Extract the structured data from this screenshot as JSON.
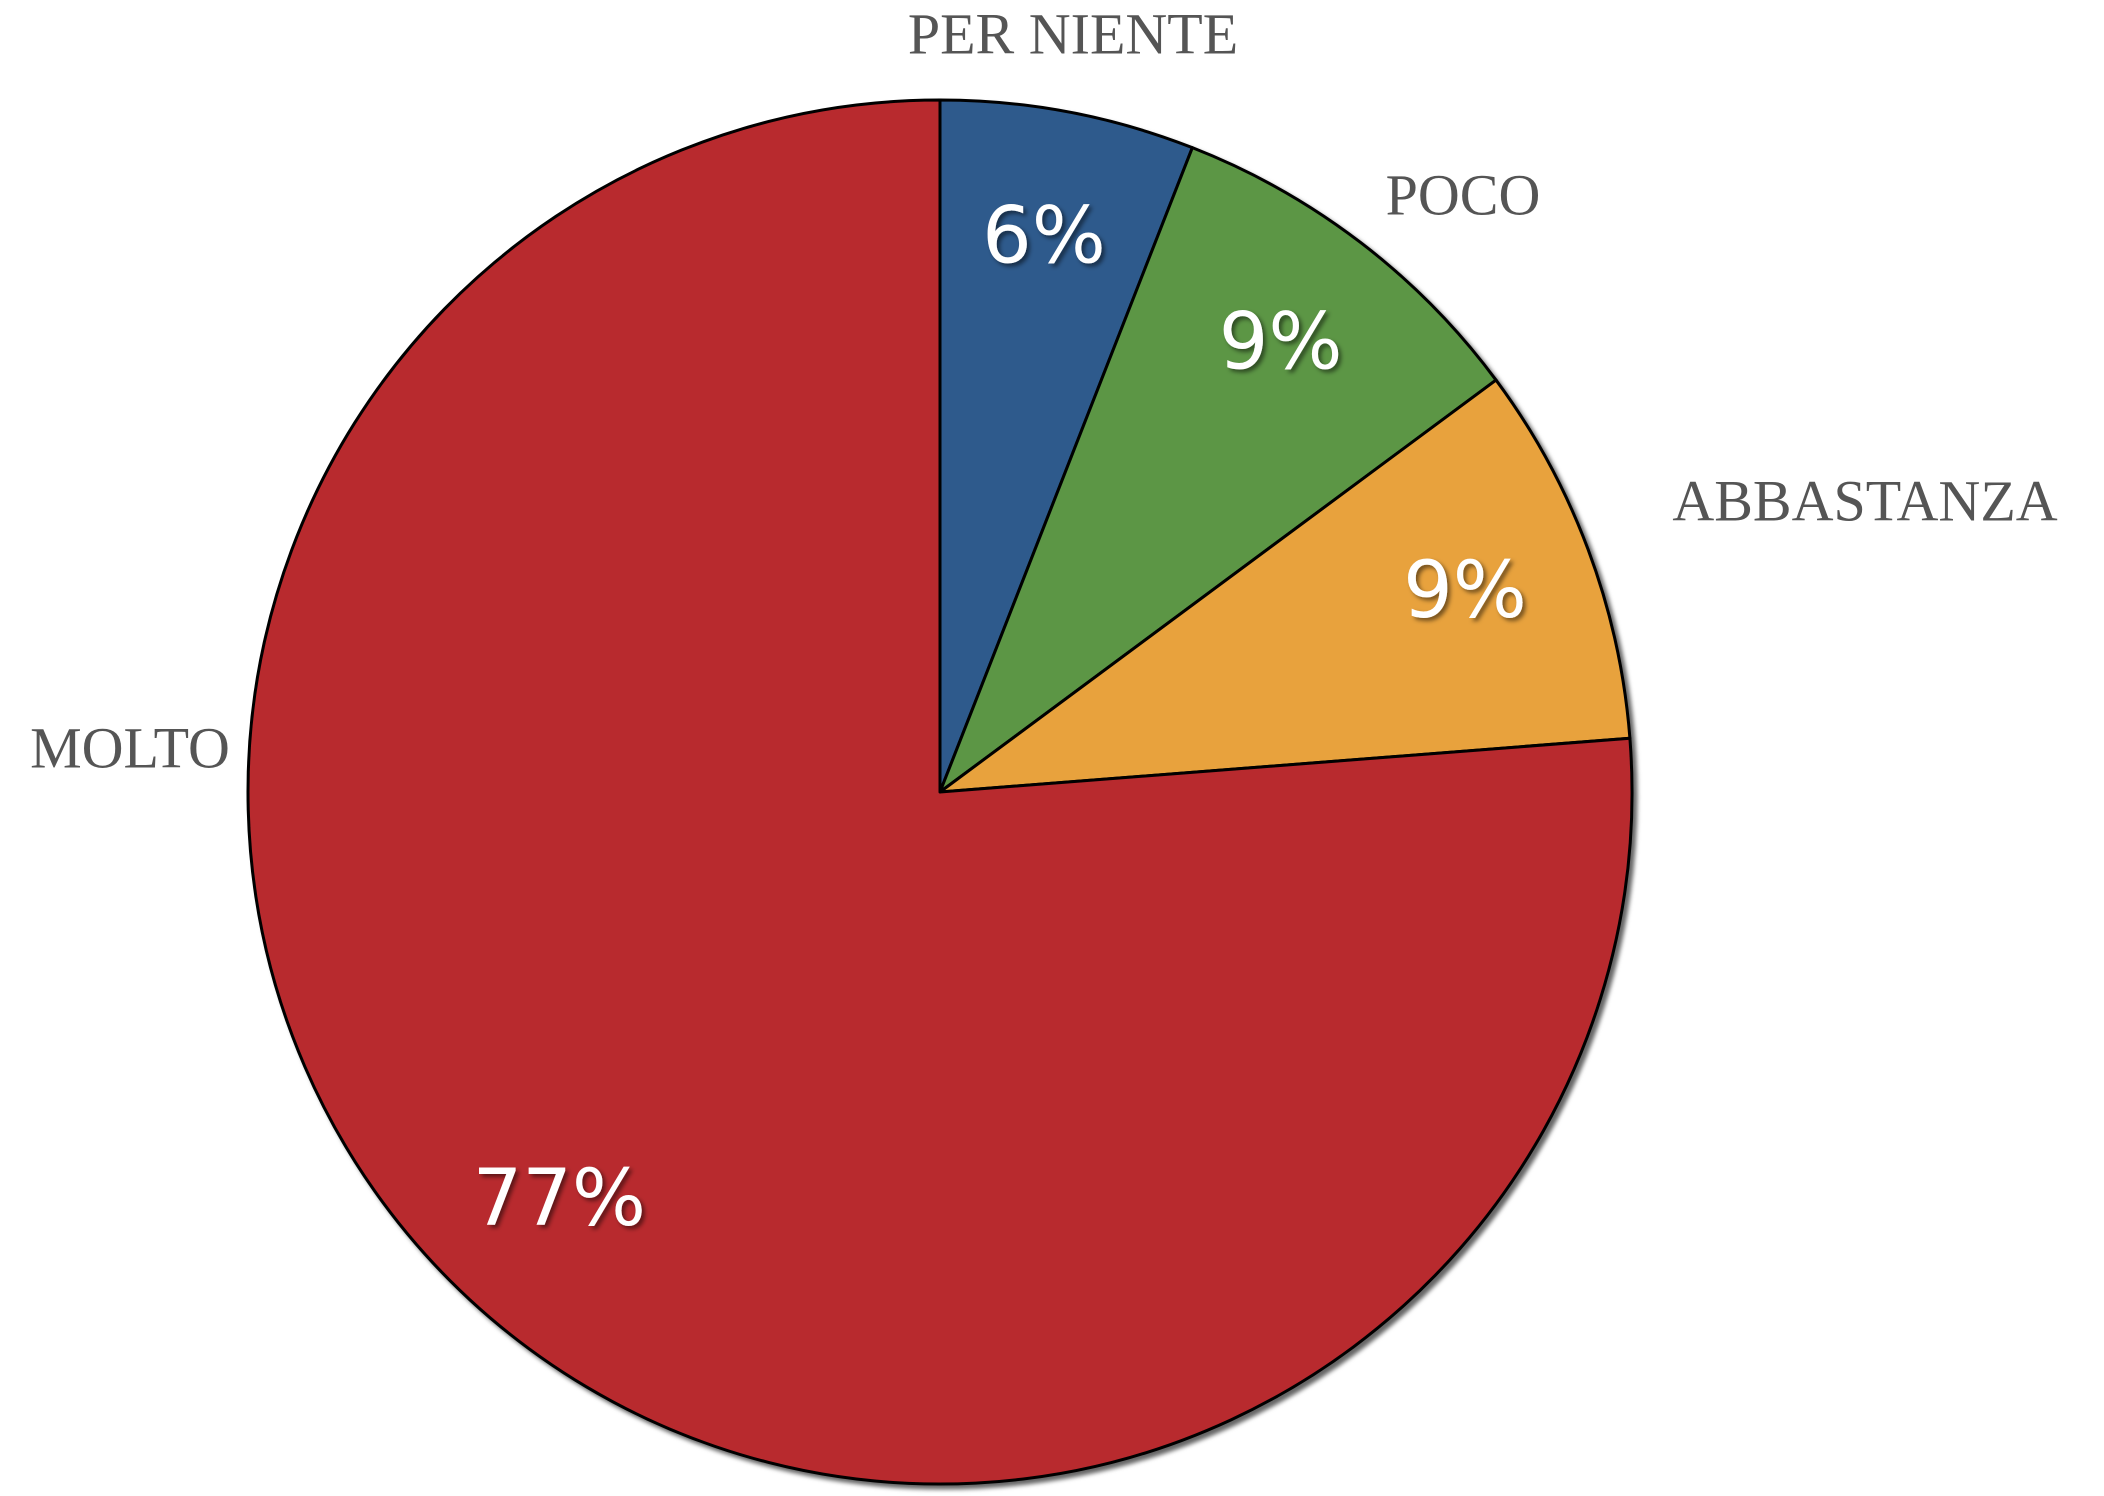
{
  "chart_data": {
    "type": "pie",
    "categories": [
      "PER NIENTE",
      "POCO",
      "ABBASTANZA",
      "MOLTO"
    ],
    "values": [
      6,
      9,
      9,
      77
    ],
    "value_labels": [
      "6%",
      "9%",
      "9%",
      "77%"
    ],
    "colors": [
      "#2e5a8c",
      "#5b9645",
      "#e8a23c",
      "#b8292f"
    ]
  }
}
